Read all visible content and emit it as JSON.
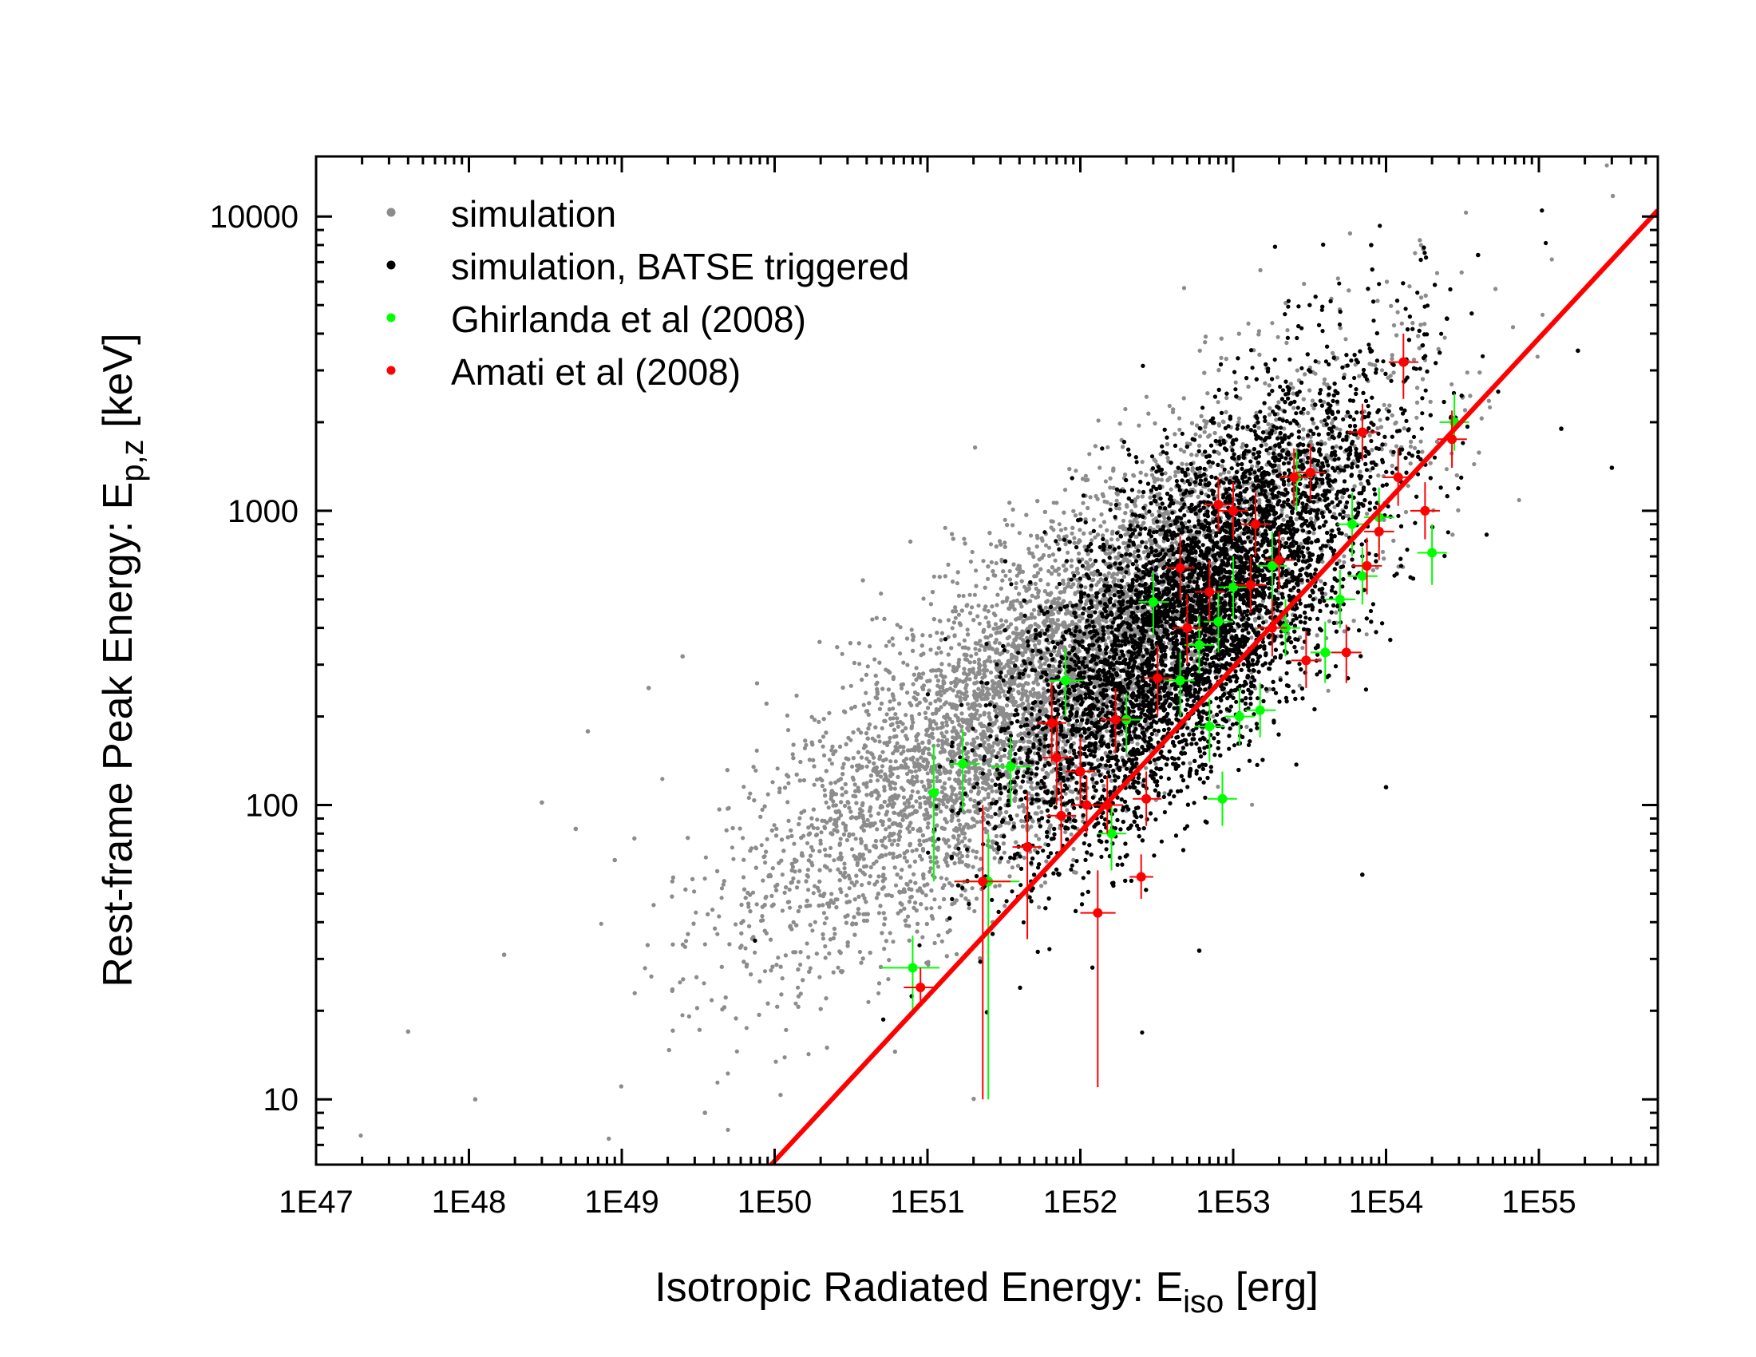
{
  "chart_data": {
    "type": "scatter",
    "xlabel": {
      "main": "Isotropic Radiated Energy: E",
      "sub": "iso",
      "tail": " [erg]"
    },
    "ylabel": {
      "main": "Rest-frame Peak Energy: E",
      "sub": "p,z",
      "tail": " [keV]"
    },
    "x_scale": "log",
    "y_scale": "log",
    "xlim": [
      1e+47,
      6e+55
    ],
    "ylim": [
      6,
      16000
    ],
    "grid": false,
    "legend_position": "top-left",
    "x_ticks": [
      {
        "value": 1e+47,
        "label": "1E47"
      },
      {
        "value": 1e+48,
        "label": "1E48"
      },
      {
        "value": 1e+49,
        "label": "1E49"
      },
      {
        "value": 1e+50,
        "label": "1E50"
      },
      {
        "value": 1e+51,
        "label": "1E51"
      },
      {
        "value": 1e+52,
        "label": "1E52"
      },
      {
        "value": 1e+53,
        "label": "1E53"
      },
      {
        "value": 1e+54,
        "label": "1E54"
      },
      {
        "value": 1e+55,
        "label": "1E55"
      }
    ],
    "y_ticks": [
      {
        "value": 10,
        "label": "10"
      },
      {
        "value": 100,
        "label": "100"
      },
      {
        "value": 1000,
        "label": "1000"
      },
      {
        "value": 10000,
        "label": "10000"
      }
    ],
    "series": [
      {
        "name": "simulation",
        "color": "#8c8c8c",
        "marker": "dot",
        "cloud": {
          "log_x_mean": 51.85,
          "log_y_mean": 2.45,
          "log_x_sd": 0.95,
          "log_y_sd": 0.45,
          "correlation": 0.82
        },
        "points": [
          [
            4e+47,
            17
          ],
          [
            1.1e+48,
            10
          ],
          [
            1.7e+48,
            31
          ],
          [
            3e+48,
            102
          ],
          [
            5e+48,
            83
          ],
          [
            6e+48,
            178
          ],
          [
            9e+48,
            65
          ],
          [
            1.5e+49,
            250
          ],
          [
            2.5e+49,
            320
          ],
          [
            3.5e+49,
            9
          ]
        ]
      },
      {
        "name": "simulation, BATSE triggered",
        "color": "#000000",
        "marker": "dot",
        "cloud": {
          "log_x_mean": 52.75,
          "log_y_mean": 2.65,
          "log_x_sd": 0.6,
          "log_y_sd": 0.38,
          "correlation": 0.72
        },
        "points": [
          [
            8e+53,
            8000
          ],
          [
            4e+54,
            7400
          ],
          [
            1.4e+55,
            1900
          ],
          [
            1.8e+55,
            3500
          ],
          [
            3e+55,
            1400
          ],
          [
            6e+52,
            32
          ],
          [
            7e+53,
            58
          ],
          [
            1e+54,
            115
          ],
          [
            2.5e+54,
            4500
          ]
        ]
      },
      {
        "name": "Ghirlanda et al (2008)",
        "color": "#00ff00",
        "marker": "dot",
        "points": [
          {
            "x": 8e+50,
            "y": 28,
            "xerr": [
              5e+50,
              1.2e+51
            ],
            "yerr": [
              20,
              36
            ]
          },
          {
            "x": 1.1e+51,
            "y": 110,
            "xerr": [
              1e+51,
              1.2e+51
            ],
            "yerr": [
              55,
              160
            ]
          },
          {
            "x": 1.7e+51,
            "y": 138,
            "xerr": [
              1.4e+51,
              2.2e+51
            ],
            "yerr": [
              95,
              180
            ]
          },
          {
            "x": 2.5e+51,
            "y": 55,
            "xerr": [
              1.5e+51,
              4e+51
            ],
            "yerr": [
              10,
              80
            ]
          },
          {
            "x": 3.5e+51,
            "y": 135,
            "xerr": [
              2.6e+51,
              4.8e+51
            ],
            "yerr": [
              100,
              170
            ]
          },
          {
            "x": 8e+51,
            "y": 265,
            "xerr": [
              6.3e+51,
              1.05e+52
            ],
            "yerr": [
              200,
              340
            ]
          },
          {
            "x": 1.6e+52,
            "y": 80,
            "xerr": [
              1.3e+52,
              2e+52
            ],
            "yerr": [
              60,
              100
            ]
          },
          {
            "x": 2e+52,
            "y": 195,
            "xerr": [
              1.6e+52,
              2.5e+52
            ],
            "yerr": [
              150,
              240
            ]
          },
          {
            "x": 3e+52,
            "y": 490,
            "xerr": [
              2.4e+52,
              3.8e+52
            ],
            "yerr": [
              380,
              620
            ]
          },
          {
            "x": 4.5e+52,
            "y": 265,
            "xerr": [
              3.6e+52,
              5.6e+52
            ],
            "yerr": [
              200,
              330
            ]
          },
          {
            "x": 6e+52,
            "y": 350,
            "xerr": [
              4.8e+52,
              7.5e+52
            ],
            "yerr": [
              280,
              440
            ]
          },
          {
            "x": 7e+52,
            "y": 185,
            "xerr": [
              5.6e+52,
              8.8e+52
            ],
            "yerr": [
              140,
              230
            ]
          },
          {
            "x": 8e+52,
            "y": 420,
            "xerr": [
              6.4e+52,
              1e+53
            ],
            "yerr": [
              330,
              530
            ]
          },
          {
            "x": 8.5e+52,
            "y": 105,
            "xerr": [
              6.8e+52,
              1.06e+53
            ],
            "yerr": [
              85,
              130
            ]
          },
          {
            "x": 1e+53,
            "y": 550,
            "xerr": [
              8e+52,
              1.25e+53
            ],
            "yerr": [
              430,
              700
            ]
          },
          {
            "x": 1.1e+53,
            "y": 200,
            "xerr": [
              8.8e+52,
              1.38e+53
            ],
            "yerr": [
              160,
              250
            ]
          },
          {
            "x": 1.5e+53,
            "y": 210,
            "xerr": [
              1.2e+53,
              1.9e+53
            ],
            "yerr": [
              170,
              260
            ]
          },
          {
            "x": 1.8e+53,
            "y": 650,
            "xerr": [
              1.44e+53,
              2.25e+53
            ],
            "yerr": [
              500,
              850
            ]
          },
          {
            "x": 2.2e+53,
            "y": 400,
            "xerr": [
              1.76e+53,
              2.75e+53
            ],
            "yerr": [
              320,
              500
            ]
          },
          {
            "x": 2.6e+53,
            "y": 1300,
            "xerr": [
              2.1e+53,
              3.3e+53
            ],
            "yerr": [
              1000,
              1600
            ]
          },
          {
            "x": 4e+53,
            "y": 330,
            "xerr": [
              3.2e+53,
              5e+53
            ],
            "yerr": [
              260,
              420
            ]
          },
          {
            "x": 5e+53,
            "y": 500,
            "xerr": [
              4e+53,
              6.3e+53
            ],
            "yerr": [
              400,
              630
            ]
          },
          {
            "x": 6e+53,
            "y": 900,
            "xerr": [
              4.8e+53,
              7.5e+53
            ],
            "yerr": [
              700,
              1150
            ]
          },
          {
            "x": 7e+53,
            "y": 600,
            "xerr": [
              5.6e+53,
              8.8e+53
            ],
            "yerr": [
              480,
              750
            ]
          },
          {
            "x": 9e+53,
            "y": 950,
            "xerr": [
              7.2e+53,
              1.13e+54
            ],
            "yerr": [
              750,
              1200
            ]
          },
          {
            "x": 2e+54,
            "y": 720,
            "xerr": [
              1.6e+54,
              2.5e+54
            ],
            "yerr": [
              560,
              900
            ]
          },
          {
            "x": 2.8e+54,
            "y": 2000,
            "xerr": [
              2.24e+54,
              3.5e+54
            ],
            "yerr": [
              1600,
              2500
            ]
          }
        ]
      },
      {
        "name": "Amati et al (2008)",
        "color": "#ff0000",
        "marker": "dot",
        "points": [
          {
            "x": 9e+50,
            "y": 24,
            "xerr": [
              7e+50,
              1.1e+51
            ],
            "yerr": [
              21,
              28
            ]
          },
          {
            "x": 2.3e+51,
            "y": 55,
            "xerr": [
              1.5e+51,
              3.5e+51
            ],
            "yerr": [
              10,
              100
            ]
          },
          {
            "x": 4.5e+51,
            "y": 72,
            "xerr": [
              3.6e+51,
              5.6e+51
            ],
            "yerr": [
              35,
              110
            ]
          },
          {
            "x": 6.5e+51,
            "y": 190,
            "xerr": [
              5.2e+51,
              8.1e+51
            ],
            "yerr": [
              140,
              260
            ]
          },
          {
            "x": 7e+51,
            "y": 145,
            "xerr": [
              5.6e+51,
              8.8e+51
            ],
            "yerr": [
              100,
              200
            ]
          },
          {
            "x": 7.5e+51,
            "y": 92,
            "xerr": [
              6e+51,
              9.4e+51
            ],
            "yerr": [
              70,
              120
            ]
          },
          {
            "x": 1e+52,
            "y": 130,
            "xerr": [
              8e+51,
              1.25e+52
            ],
            "yerr": [
              100,
              170
            ]
          },
          {
            "x": 1.1e+52,
            "y": 100,
            "xerr": [
              8.8e+51,
              1.38e+52
            ],
            "yerr": [
              80,
              125
            ]
          },
          {
            "x": 1.3e+52,
            "y": 43,
            "xerr": [
              1e+52,
              1.7e+52
            ],
            "yerr": [
              11,
              60
            ]
          },
          {
            "x": 1.5e+52,
            "y": 100,
            "xerr": [
              1.2e+52,
              1.9e+52
            ],
            "yerr": [
              80,
              125
            ]
          },
          {
            "x": 1.7e+52,
            "y": 195,
            "xerr": [
              1.36e+52,
              2.1e+52
            ],
            "yerr": [
              150,
              250
            ]
          },
          {
            "x": 2.5e+52,
            "y": 57,
            "xerr": [
              2.1e+52,
              3e+52
            ],
            "yerr": [
              48,
              68
            ]
          },
          {
            "x": 2.7e+52,
            "y": 105,
            "xerr": [
              2.2e+52,
              3.4e+52
            ],
            "yerr": [
              85,
              130
            ]
          },
          {
            "x": 3.2e+52,
            "y": 270,
            "xerr": [
              2.6e+52,
              4e+52
            ],
            "yerr": [
              200,
              350
            ]
          },
          {
            "x": 4.5e+52,
            "y": 640,
            "xerr": [
              3.6e+52,
              5.6e+52
            ],
            "yerr": [
              500,
              820
            ]
          },
          {
            "x": 5e+52,
            "y": 400,
            "xerr": [
              4e+52,
              6.3e+52
            ],
            "yerr": [
              300,
              520
            ]
          },
          {
            "x": 7e+52,
            "y": 530,
            "xerr": [
              5.6e+52,
              8.8e+52
            ],
            "yerr": [
              420,
              680
            ]
          },
          {
            "x": 8e+52,
            "y": 1050,
            "xerr": [
              6.4e+52,
              1e+53
            ],
            "yerr": [
              850,
              1300
            ]
          },
          {
            "x": 1e+53,
            "y": 1000,
            "xerr": [
              8e+52,
              1.25e+53
            ],
            "yerr": [
              800,
              1250
            ]
          },
          {
            "x": 1.3e+53,
            "y": 560,
            "xerr": [
              1.04e+53,
              1.63e+53
            ],
            "yerr": [
              450,
              700
            ]
          },
          {
            "x": 1.4e+53,
            "y": 900,
            "xerr": [
              1.12e+53,
              1.75e+53
            ],
            "yerr": [
              700,
              1150
            ]
          },
          {
            "x": 1.8e+53,
            "y": 400,
            "xerr": [
              1.44e+53,
              2.25e+53
            ],
            "yerr": [
              320,
              500
            ]
          },
          {
            "x": 2e+53,
            "y": 680,
            "xerr": [
              1.6e+53,
              2.5e+53
            ],
            "yerr": [
              540,
              850
            ]
          },
          {
            "x": 2.5e+53,
            "y": 1300,
            "xerr": [
              2e+53,
              3.1e+53
            ],
            "yerr": [
              1040,
              1630
            ]
          },
          {
            "x": 3e+53,
            "y": 310,
            "xerr": [
              2.4e+53,
              3.75e+53
            ],
            "yerr": [
              250,
              390
            ]
          },
          {
            "x": 3.2e+53,
            "y": 1350,
            "xerr": [
              2.56e+53,
              4e+53
            ],
            "yerr": [
              1080,
              1690
            ]
          },
          {
            "x": 5.5e+53,
            "y": 330,
            "xerr": [
              4.4e+53,
              6.9e+53
            ],
            "yerr": [
              260,
              410
            ]
          },
          {
            "x": 7e+53,
            "y": 1850,
            "xerr": [
              5.6e+53,
              8.8e+53
            ],
            "yerr": [
              1480,
              2310
            ]
          },
          {
            "x": 7.5e+53,
            "y": 650,
            "xerr": [
              6e+53,
              9.4e+53
            ],
            "yerr": [
              520,
              810
            ]
          },
          {
            "x": 9e+53,
            "y": 850,
            "xerr": [
              7.2e+53,
              1.13e+54
            ],
            "yerr": [
              680,
              1060
            ]
          },
          {
            "x": 1.2e+54,
            "y": 1300,
            "xerr": [
              9.6e+53,
              1.5e+54
            ],
            "yerr": [
              1040,
              1630
            ]
          },
          {
            "x": 1.3e+54,
            "y": 3200,
            "xerr": [
              1.04e+54,
              1.63e+54
            ],
            "yerr": [
              2400,
              4000
            ]
          },
          {
            "x": 1.8e+54,
            "y": 1000,
            "xerr": [
              1.44e+54,
              2.25e+54
            ],
            "yerr": [
              800,
              1250
            ]
          },
          {
            "x": 2.7e+54,
            "y": 1750,
            "xerr": [
              2.16e+54,
              3.38e+54
            ],
            "yerr": [
              1400,
              2190
            ]
          }
        ]
      }
    ],
    "fit_line": {
      "color": "#ff0000",
      "points": [
        [
          9.5e+49,
          6
        ],
        [
          6e+55,
          10500
        ]
      ]
    }
  }
}
